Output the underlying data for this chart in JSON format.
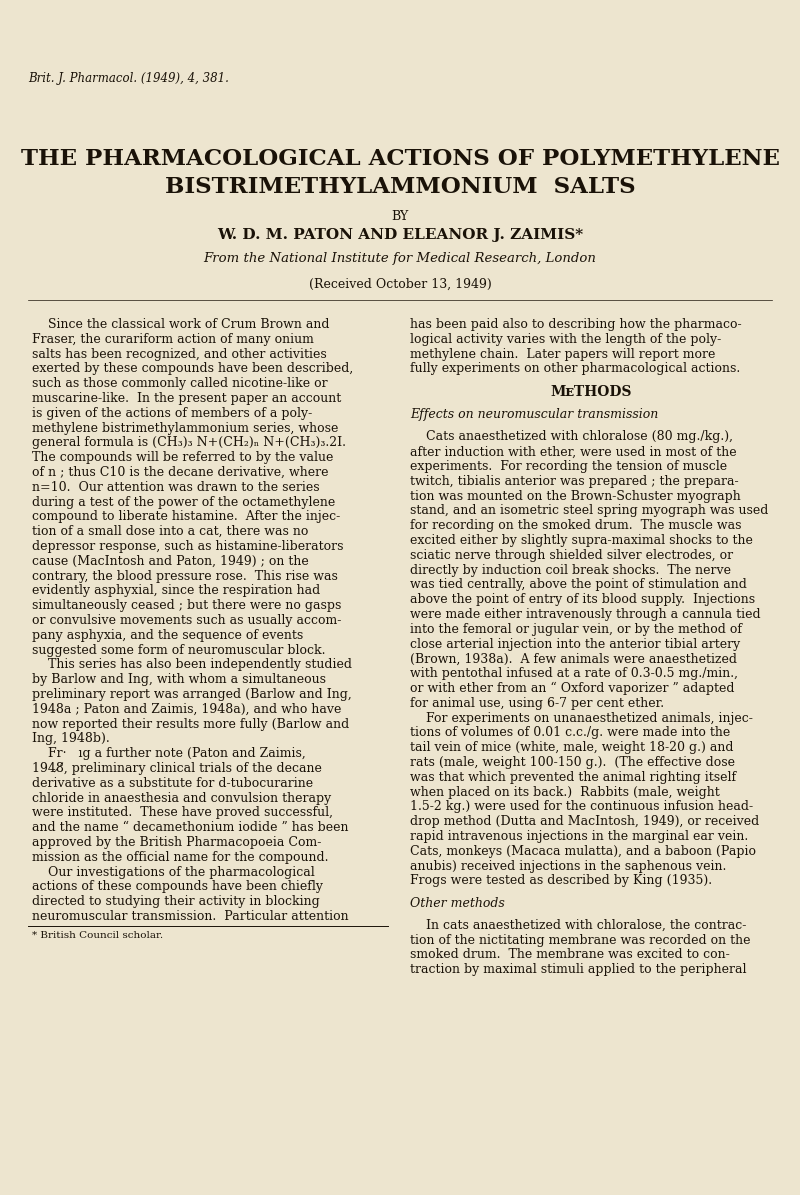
{
  "page_color": "#ede5cf",
  "text_color": "#1a1208",
  "header_journal": "Brit. J. Pharmacol. (1949), 4, 381.",
  "title_line1": "THE PHARMACOLOGICAL ACTIONS OF POLYMETHYLENE",
  "title_line2": "BISTRIMETHYLAMMONIUM  SALTS",
  "by_line": "BY",
  "authors": "W. D. M. PATON AND ELEANOR J. ZAIMIS*",
  "affiliation": "From the National Institute for Medical Research, London",
  "received": "(Received October 13, 1949)",
  "footnote_left": "* British Council scholar.",
  "left_col_lines": [
    "    Since the classical work of Crum Brown and",
    "Fraser, the curariform action of many onium",
    "salts has been recognized, and other activities",
    "exerted by these compounds have been described,",
    "such as those commonly called nicotine-like or",
    "muscarine-like.  In the present paper an account",
    "is given of the actions of members of a poly-",
    "methylene bistrimethylammonium series, whose",
    "general formula is (CH₃)₃ N+(CH₂)ₙ N+(CH₃)₃.2I.",
    "The compounds will be referred to by the value",
    "of n ; thus C10 is the decane derivative, where",
    "n=10.  Our attention was drawn to the series",
    "during a test of the power of the octamethylene",
    "compound to liberate histamine.  After the injec-",
    "tion of a small dose into a cat, there was no",
    "depressor response, such as histamine-liberators",
    "cause (MacIntosh and Paton, 1949) ; on the",
    "contrary, the blood pressure rose.  This rise was",
    "evidently asphyxial, since the respiration had",
    "simultaneously ceased ; but there were no gasps",
    "or convulsive movements such as usually accom-",
    "pany asphyxia, and the sequence of events",
    "suggested some form of neuromuscular block.",
    "    This series has also been independently studied",
    "by Barlow and Ing, with whom a simultaneous",
    "preliminary report was arranged (Barlow and Ing,",
    "1948a ; Paton and Zaimis, 1948a), and who have",
    "now reported their results more fully (Barlow and",
    "Ing, 1948b).",
    "    Fr·   ıg a further note (Paton and Zaimis,",
    "1948̸̸, preliminary clinical trials of the decane",
    "derivative as a substitute for d-tubocurarine",
    "chloride in anaesthesia and convulsion therapy",
    "were instituted.  These have proved successful,",
    "and the name “ decamethonium iodide ” has been",
    "approved by the British Pharmacopoeia Com-",
    "mission as the official name for the compound.",
    "    Our investigations of the pharmacological",
    "actions of these compounds have been chiefly",
    "directed to studying their activity in blocking",
    "neuromuscular transmission.  Particular attention"
  ],
  "right_col_lines": [
    {
      "text": "has been paid also to describing how the pharmaco-",
      "style": "normal"
    },
    {
      "text": "logical activity varies with the length of the poly-",
      "style": "normal"
    },
    {
      "text": "methylene chain.  Later papers will report more",
      "style": "normal"
    },
    {
      "text": "fully experiments on other pharmacological actions.",
      "style": "normal"
    },
    {
      "text": "",
      "style": "normal"
    },
    {
      "text": "Methods",
      "style": "section"
    },
    {
      "text": "",
      "style": "normal"
    },
    {
      "text": "Effects on neuromuscular transmission",
      "style": "italic"
    },
    {
      "text": "",
      "style": "normal"
    },
    {
      "text": "    Cats anaesthetized with chloralose (80 mg./kg.),",
      "style": "normal"
    },
    {
      "text": "after induction with ether, were used in most of the",
      "style": "normal"
    },
    {
      "text": "experiments.  For recording the tension of muscle",
      "style": "normal"
    },
    {
      "text": "twitch, tibialis anterior was prepared ; the prepara-",
      "style": "normal"
    },
    {
      "text": "tion was mounted on the Brown-Schuster myograph",
      "style": "normal"
    },
    {
      "text": "stand, and an isometric steel spring myograph was used",
      "style": "normal"
    },
    {
      "text": "for recording on the smoked drum.  The muscle was",
      "style": "normal"
    },
    {
      "text": "excited either by slightly supra-maximal shocks to the",
      "style": "normal"
    },
    {
      "text": "sciatic nerve through shielded silver electrodes, or",
      "style": "normal"
    },
    {
      "text": "directly by induction coil break shocks.  The nerve",
      "style": "normal"
    },
    {
      "text": "was tied centrally, above the point of stimulation and",
      "style": "normal"
    },
    {
      "text": "above the point of entry of its blood supply.  Injections",
      "style": "normal"
    },
    {
      "text": "were made either intravenously through a cannula tied",
      "style": "normal"
    },
    {
      "text": "into the femoral or jugular vein, or by the method of",
      "style": "normal"
    },
    {
      "text": "close arterial injection into the anterior tibial artery",
      "style": "normal"
    },
    {
      "text": "(Brown, 1938a).  A few animals were anaesthetized",
      "style": "normal"
    },
    {
      "text": "with pentothal infused at a rate of 0.3-0.5 mg./min.,",
      "style": "normal"
    },
    {
      "text": "or with ether from an “ Oxford vaporizer ” adapted",
      "style": "normal"
    },
    {
      "text": "for animal use, using 6-7 per cent ether.",
      "style": "normal"
    },
    {
      "text": "    For experiments on unanaesthetized animals, injec-",
      "style": "normal"
    },
    {
      "text": "tions of volumes of 0.01 c.c./g. were made into the",
      "style": "normal"
    },
    {
      "text": "tail vein of mice (white, male, weight 18-20 g.) and",
      "style": "normal"
    },
    {
      "text": "rats (male, weight 100-150 g.).  (The effective dose",
      "style": "normal"
    },
    {
      "text": "was that which prevented the animal righting itself",
      "style": "normal"
    },
    {
      "text": "when placed on its back.)  Rabbits (male, weight",
      "style": "normal"
    },
    {
      "text": "1.5-2 kg.) were used for the continuous infusion head-",
      "style": "normal"
    },
    {
      "text": "drop method (Dutta and MacIntosh, 1949), or received",
      "style": "normal"
    },
    {
      "text": "rapid intravenous injections in the marginal ear vein.",
      "style": "normal"
    },
    {
      "text": "Cats, monkeys (Macaca mulatta), and a baboon (Papio",
      "style": "normal"
    },
    {
      "text": "anubis) received injections in the saphenous vein.",
      "style": "normal"
    },
    {
      "text": "Frogs were tested as described by King (1935).",
      "style": "normal"
    },
    {
      "text": "",
      "style": "normal"
    },
    {
      "text": "Other methods",
      "style": "italic"
    },
    {
      "text": "",
      "style": "normal"
    },
    {
      "text": "    In cats anaesthetized with chloralose, the contrac-",
      "style": "normal"
    },
    {
      "text": "tion of the nictitating membrane was recorded on the",
      "style": "normal"
    },
    {
      "text": "smoked drum.  The membrane was excited to con-",
      "style": "normal"
    },
    {
      "text": "traction by maximal stimuli applied to the peripheral",
      "style": "normal"
    }
  ]
}
